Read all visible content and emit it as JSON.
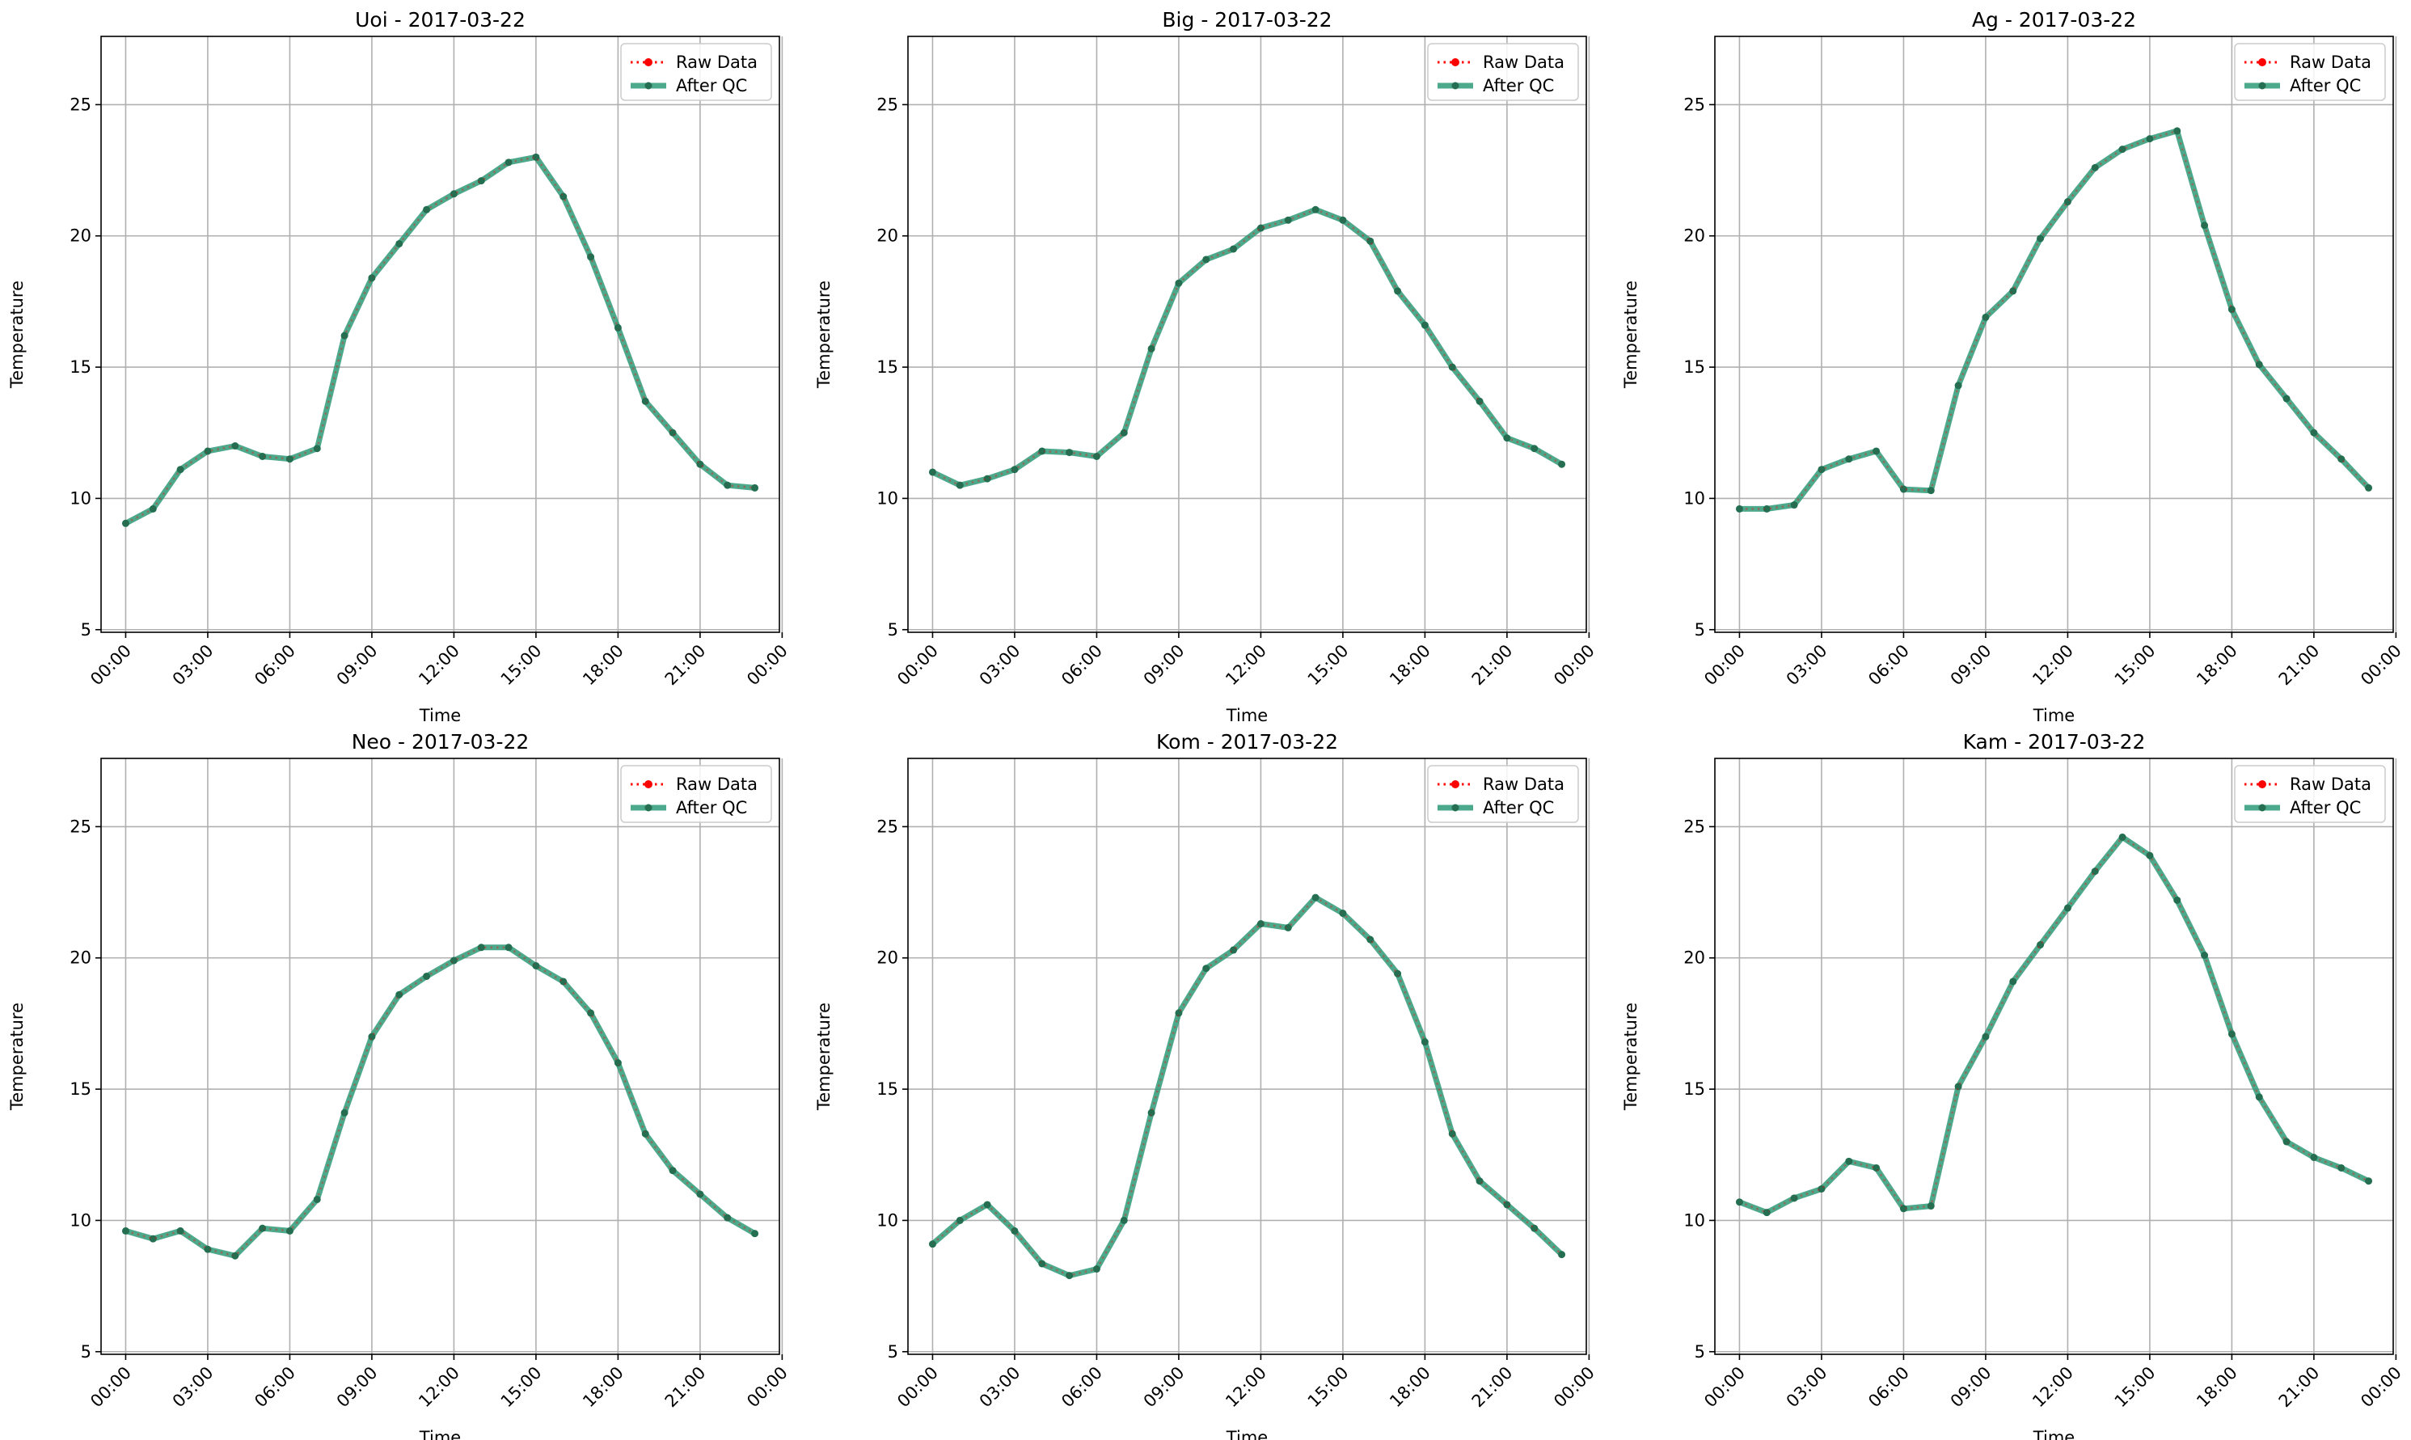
{
  "legend": {
    "raw_label": "Raw Data",
    "qc_label": "After QC",
    "placement": "upper-right"
  },
  "colors": {
    "raw": "#ff0000",
    "qc": "#2e9a78",
    "qc_marker": "#246f52",
    "grid": "#b0b0b0",
    "axes": "#000000"
  },
  "shared_axes": {
    "xlabel": "Time",
    "ylabel": "Temperature",
    "x_unit": "hour",
    "xlim": [
      -0.9,
      23.9
    ],
    "ylim": [
      4.9,
      27.6
    ],
    "x_ticks": [
      0,
      3,
      6,
      9,
      12,
      15,
      18,
      21,
      24
    ],
    "x_tick_labels": [
      "00:00",
      "03:00",
      "06:00",
      "09:00",
      "12:00",
      "15:00",
      "18:00",
      "21:00",
      "00:00"
    ],
    "y_ticks": [
      5,
      10,
      15,
      20,
      25
    ],
    "y_tick_labels": [
      "5",
      "10",
      "15",
      "20",
      "25"
    ],
    "grid": true
  },
  "chart_data": [
    {
      "type": "line",
      "title": "Uoi - 2017-03-22",
      "xlabel": "Time",
      "ylabel": "Temperature",
      "x": [
        0,
        1,
        2,
        3,
        4,
        5,
        6,
        7,
        8,
        9,
        10,
        11,
        12,
        13,
        14,
        15,
        16,
        17,
        18,
        19,
        20,
        21,
        22,
        23
      ],
      "series": [
        {
          "name": "Raw Data",
          "values": [
            9.05,
            9.6,
            11.1,
            11.8,
            12.0,
            11.6,
            11.5,
            11.9,
            16.2,
            18.4,
            19.7,
            21.0,
            21.6,
            22.1,
            22.8,
            23.0,
            21.5,
            19.2,
            16.5,
            13.7,
            12.5,
            11.3,
            10.5,
            10.4
          ]
        },
        {
          "name": "After QC",
          "values": [
            9.05,
            9.6,
            11.1,
            11.8,
            12.0,
            11.6,
            11.5,
            11.9,
            16.2,
            18.4,
            19.7,
            21.0,
            21.6,
            22.1,
            22.8,
            23.0,
            21.5,
            19.2,
            16.5,
            13.7,
            12.5,
            11.3,
            10.5,
            10.4
          ]
        }
      ]
    },
    {
      "type": "line",
      "title": "Big - 2017-03-22",
      "xlabel": "Time",
      "ylabel": "Temperature",
      "x": [
        0,
        1,
        2,
        3,
        4,
        5,
        6,
        7,
        8,
        9,
        10,
        11,
        12,
        13,
        14,
        15,
        16,
        17,
        18,
        19,
        20,
        21,
        22,
        23
      ],
      "series": [
        {
          "name": "Raw Data",
          "values": [
            11.0,
            10.5,
            10.75,
            11.1,
            11.8,
            11.75,
            11.6,
            12.5,
            15.7,
            18.2,
            19.1,
            19.5,
            20.3,
            20.6,
            21.0,
            20.6,
            19.8,
            17.9,
            16.6,
            15.0,
            13.7,
            12.3,
            11.9,
            11.3
          ]
        },
        {
          "name": "After QC",
          "values": [
            11.0,
            10.5,
            10.75,
            11.1,
            11.8,
            11.75,
            11.6,
            12.5,
            15.7,
            18.2,
            19.1,
            19.5,
            20.3,
            20.6,
            21.0,
            20.6,
            19.8,
            17.9,
            16.6,
            15.0,
            13.7,
            12.3,
            11.9,
            11.3
          ]
        }
      ]
    },
    {
      "type": "line",
      "title": "Ag - 2017-03-22",
      "xlabel": "Time",
      "ylabel": "Temperature",
      "x": [
        0,
        1,
        2,
        3,
        4,
        5,
        6,
        7,
        8,
        9,
        10,
        11,
        12,
        13,
        14,
        15,
        16,
        17,
        18,
        19,
        20,
        21,
        22,
        23
      ],
      "series": [
        {
          "name": "Raw Data",
          "values": [
            9.6,
            9.6,
            9.75,
            11.1,
            11.5,
            11.8,
            10.35,
            10.3,
            14.3,
            16.9,
            17.9,
            19.9,
            21.3,
            22.6,
            23.3,
            23.7,
            24.0,
            20.4,
            17.2,
            15.1,
            13.8,
            12.5,
            11.5,
            10.4
          ]
        },
        {
          "name": "After QC",
          "values": [
            9.6,
            9.6,
            9.75,
            11.1,
            11.5,
            11.8,
            10.35,
            10.3,
            14.3,
            16.9,
            17.9,
            19.9,
            21.3,
            22.6,
            23.3,
            23.7,
            24.0,
            20.4,
            17.2,
            15.1,
            13.8,
            12.5,
            11.5,
            10.4
          ]
        }
      ]
    },
    {
      "type": "line",
      "title": "Neo - 2017-03-22",
      "xlabel": "Time",
      "ylabel": "Temperature",
      "x": [
        0,
        1,
        2,
        3,
        4,
        5,
        6,
        7,
        8,
        9,
        10,
        11,
        12,
        13,
        14,
        15,
        16,
        17,
        18,
        19,
        20,
        21,
        22,
        23
      ],
      "series": [
        {
          "name": "Raw Data",
          "values": [
            9.6,
            9.3,
            9.6,
            8.9,
            8.65,
            9.7,
            9.6,
            10.8,
            14.1,
            17.0,
            18.6,
            19.3,
            19.9,
            20.4,
            20.4,
            19.7,
            19.1,
            17.9,
            16.0,
            13.3,
            11.9,
            11.0,
            10.1,
            9.5
          ]
        },
        {
          "name": "After QC",
          "values": [
            9.6,
            9.3,
            9.6,
            8.9,
            8.65,
            9.7,
            9.6,
            10.8,
            14.1,
            17.0,
            18.6,
            19.3,
            19.9,
            20.4,
            20.4,
            19.7,
            19.1,
            17.9,
            16.0,
            13.3,
            11.9,
            11.0,
            10.1,
            9.5
          ]
        }
      ]
    },
    {
      "type": "line",
      "title": "Kom - 2017-03-22",
      "xlabel": "Time",
      "ylabel": "Temperature",
      "x": [
        0,
        1,
        2,
        3,
        4,
        5,
        6,
        7,
        8,
        9,
        10,
        11,
        12,
        13,
        14,
        15,
        16,
        17,
        18,
        19,
        20,
        21,
        22,
        23
      ],
      "series": [
        {
          "name": "Raw Data",
          "values": [
            9.1,
            10.0,
            10.6,
            9.6,
            8.35,
            7.9,
            8.15,
            10.0,
            14.1,
            17.9,
            19.6,
            20.3,
            21.3,
            21.15,
            22.3,
            21.7,
            20.7,
            19.4,
            16.8,
            13.3,
            11.5,
            10.6,
            9.7,
            8.7
          ]
        },
        {
          "name": "After QC",
          "values": [
            9.1,
            10.0,
            10.6,
            9.6,
            8.35,
            7.9,
            8.15,
            10.0,
            14.1,
            17.9,
            19.6,
            20.3,
            21.3,
            21.15,
            22.3,
            21.7,
            20.7,
            19.4,
            16.8,
            13.3,
            11.5,
            10.6,
            9.7,
            8.7
          ]
        }
      ]
    },
    {
      "type": "line",
      "title": "Kam - 2017-03-22",
      "xlabel": "Time",
      "ylabel": "Temperature",
      "x": [
        0,
        1,
        2,
        3,
        4,
        5,
        6,
        7,
        8,
        9,
        10,
        11,
        12,
        13,
        14,
        15,
        16,
        17,
        18,
        19,
        20,
        21,
        22,
        23
      ],
      "series": [
        {
          "name": "Raw Data",
          "values": [
            10.7,
            10.3,
            10.85,
            11.2,
            12.25,
            12.0,
            10.45,
            10.55,
            15.1,
            17.0,
            19.1,
            20.5,
            21.9,
            23.3,
            24.6,
            23.9,
            22.2,
            20.1,
            17.1,
            14.7,
            13.0,
            12.4,
            12.0,
            11.5
          ]
        },
        {
          "name": "After QC",
          "values": [
            10.7,
            10.3,
            10.85,
            11.2,
            12.25,
            12.0,
            10.45,
            10.55,
            15.1,
            17.0,
            19.1,
            20.5,
            21.9,
            23.3,
            24.6,
            23.9,
            22.2,
            20.1,
            17.1,
            14.7,
            13.0,
            12.4,
            12.0,
            11.5
          ]
        }
      ]
    }
  ]
}
